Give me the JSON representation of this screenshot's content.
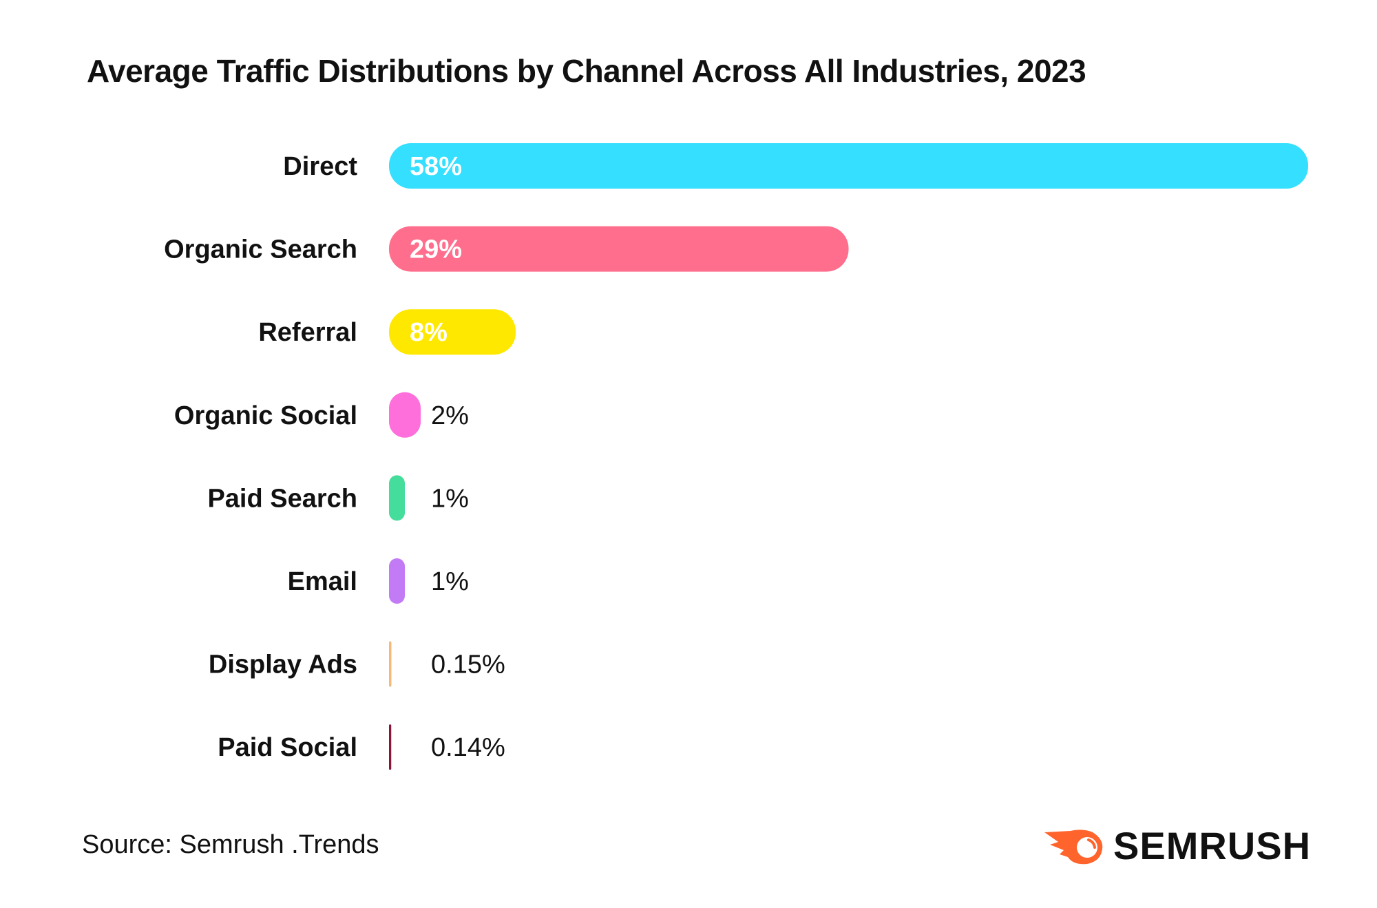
{
  "chart_data": {
    "type": "bar",
    "orientation": "horizontal",
    "title": "Average Traffic Distributions by Channel Across All Industries, 2023",
    "categories": [
      "Direct",
      "Organic Search",
      "Referral",
      "Organic Social",
      "Paid Search",
      "Email",
      "Display Ads",
      "Paid Social"
    ],
    "values": [
      58,
      29,
      8,
      2,
      1,
      1,
      0.15,
      0.14
    ],
    "data_labels": [
      "58%",
      "29%",
      "8%",
      "2%",
      "1%",
      "1%",
      "0.15%",
      "0.14%"
    ],
    "colors": [
      "#34dfff",
      "#ff6e8c",
      "#ffe800",
      "#ff6fdc",
      "#45dd9b",
      "#c27bf5",
      "#f5b97a",
      "#8a1538"
    ],
    "xlim": [
      0,
      58
    ],
    "grid": false,
    "legend": "none"
  },
  "footer": {
    "source": "Source: Semrush .Trends",
    "logo_text": "SEMRUSH",
    "logo_color": "#ff642d"
  }
}
